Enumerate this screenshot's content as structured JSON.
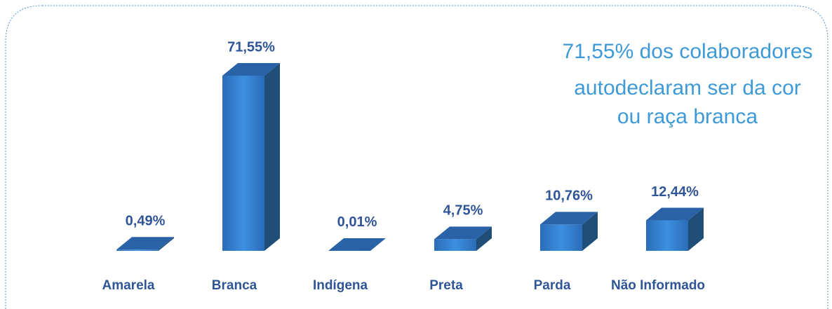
{
  "chart_data": {
    "type": "bar3d",
    "annotation": [
      "71,55% dos colaboradores",
      "autodeclaram ser da cor",
      "ou raça branca"
    ],
    "categories": [
      "Amarela",
      "Branca",
      "Indígena",
      "Preta",
      "Parda",
      "Não Informado"
    ],
    "values": [
      0.49,
      71.55,
      0.01,
      4.75,
      10.76,
      12.44
    ],
    "value_labels": [
      "0,49%",
      "71,55%",
      "0,01%",
      "4,75%",
      "10,76%",
      "12,44%"
    ],
    "color": "#2e75c8"
  }
}
